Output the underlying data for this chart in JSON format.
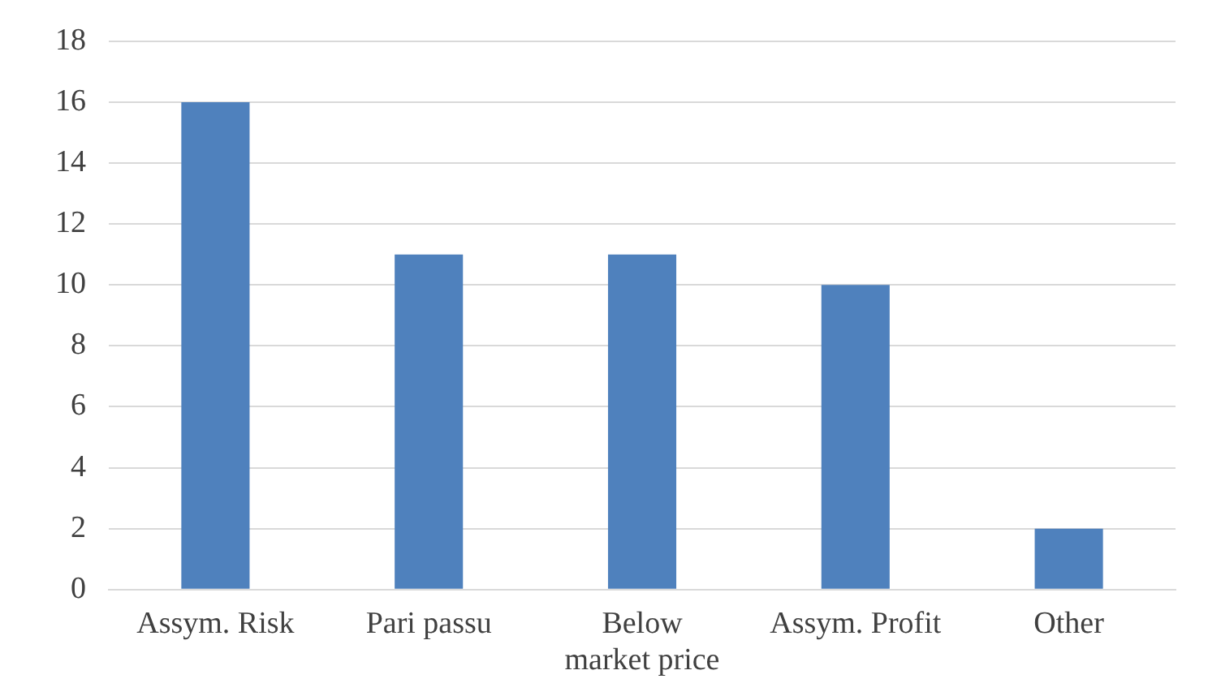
{
  "chart_data": {
    "type": "bar",
    "categories": [
      "Assym. Risk",
      "Pari passu",
      "Below market price",
      "Assym. Profit",
      "Other"
    ],
    "values": [
      16,
      11,
      11,
      10,
      2
    ],
    "color": "#4f81bd",
    "ylim": [
      0,
      18
    ],
    "yticks": [
      0,
      2,
      4,
      6,
      8,
      10,
      12,
      14,
      16,
      18
    ],
    "grid": "y",
    "legend": false
  }
}
